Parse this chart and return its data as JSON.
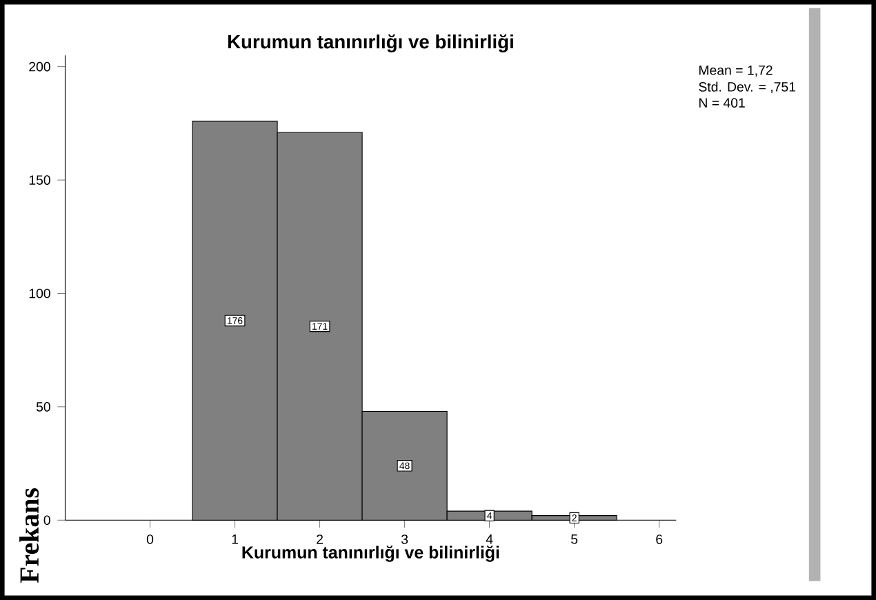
{
  "chart_data": {
    "type": "histogram",
    "title": "Kurumun tanınırlığı ve bilinirliği",
    "xlabel": "Kurumun tanınırlığı ve bilinirliği",
    "ylabel": "Frekans",
    "bins": [
      0.5,
      1.5,
      2.5,
      3.5,
      4.5,
      5.5
    ],
    "values": [
      176,
      171,
      48,
      4,
      2
    ],
    "color": "#808080",
    "xlim": [
      -1,
      6.2
    ],
    "xticks": [
      0,
      1,
      2,
      3,
      4,
      5,
      6
    ],
    "ylim": [
      0,
      205
    ],
    "yticks": [
      0,
      50,
      100,
      150,
      200
    ],
    "data_labels": true,
    "annotations": [
      "Mean = 1,72",
      "Std. Dev. = ,751",
      "N = 401"
    ]
  }
}
